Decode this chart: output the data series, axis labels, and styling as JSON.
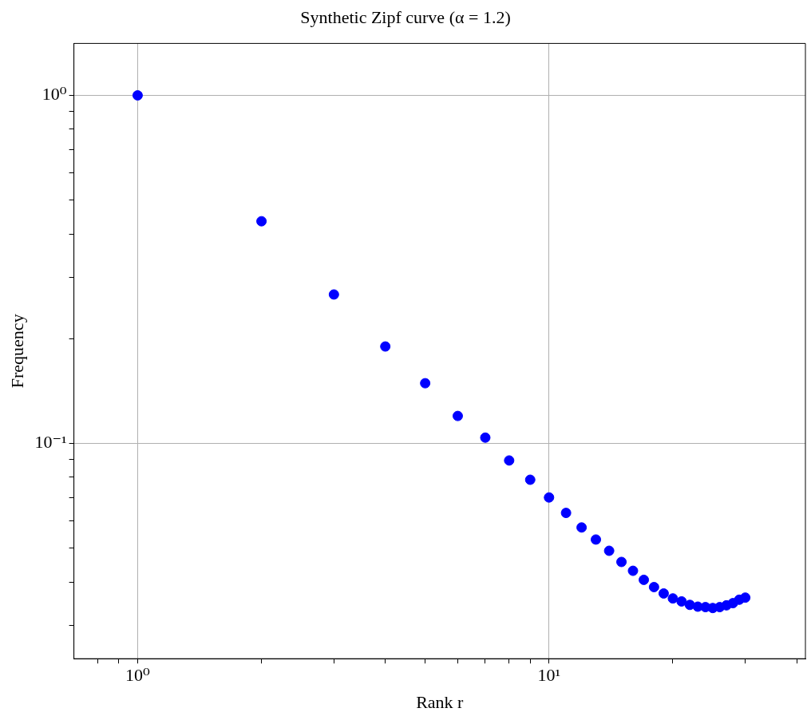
{
  "chart_data": {
    "type": "scatter",
    "title": "Synthetic Zipf curve (α = 1.2)",
    "xlabel": "Rank r",
    "ylabel": "Frequency",
    "x": [
      1,
      2,
      3,
      4,
      5,
      6,
      7,
      8,
      9,
      10,
      11,
      12,
      13,
      14,
      15,
      16,
      17,
      18,
      19,
      20,
      21,
      22,
      23,
      24,
      25,
      26,
      27,
      28,
      29,
      30
    ],
    "series": [
      {
        "color": "#0000ff",
        "values": [
          1.0,
          0.435,
          0.268,
          0.19,
          0.149,
          0.12,
          0.104,
          0.0894,
          0.0787,
          0.07,
          0.0632,
          0.0574,
          0.053,
          0.0492,
          0.0457,
          0.0431,
          0.0406,
          0.0387,
          0.0371,
          0.0359,
          0.0352,
          0.0344,
          0.034,
          0.0339,
          0.0337,
          0.0339,
          0.0343,
          0.0348,
          0.0356,
          0.0361
        ]
      }
    ],
    "xlim": [
      0.71,
      42
    ],
    "ylim": [
      0.0241,
      1.41
    ],
    "xticks": [
      {
        "value": 0.8,
        "label": null
      },
      {
        "value": 0.9,
        "label": null
      },
      {
        "value": 1,
        "label": "10⁰"
      },
      {
        "value": 2,
        "label": null
      },
      {
        "value": 3,
        "label": null
      },
      {
        "value": 4,
        "label": null
      },
      {
        "value": 5,
        "label": null
      },
      {
        "value": 6,
        "label": null
      },
      {
        "value": 7,
        "label": null
      },
      {
        "value": 8,
        "label": null
      },
      {
        "value": 9,
        "label": null
      },
      {
        "value": 10,
        "label": "10¹"
      },
      {
        "value": 20,
        "label": null
      },
      {
        "value": 30,
        "label": null
      },
      {
        "value": 40,
        "label": null
      }
    ],
    "yticks": [
      {
        "value": 0.03,
        "label": null
      },
      {
        "value": 0.04,
        "label": null
      },
      {
        "value": 0.05,
        "label": null
      },
      {
        "value": 0.06,
        "label": null
      },
      {
        "value": 0.07,
        "label": null
      },
      {
        "value": 0.08,
        "label": null
      },
      {
        "value": 0.09,
        "label": null
      },
      {
        "value": 0.1,
        "label": "10⁻¹"
      },
      {
        "value": 0.2,
        "label": null
      },
      {
        "value": 0.3,
        "label": null
      },
      {
        "value": 0.4,
        "label": null
      },
      {
        "value": 0.5,
        "label": null
      },
      {
        "value": 0.6,
        "label": null
      },
      {
        "value": 0.7,
        "label": null
      },
      {
        "value": 0.8,
        "label": null
      },
      {
        "value": 0.9,
        "label": null
      },
      {
        "value": 1,
        "label": "10⁰"
      }
    ],
    "log": "xy",
    "grid": true,
    "marker": "circle"
  }
}
